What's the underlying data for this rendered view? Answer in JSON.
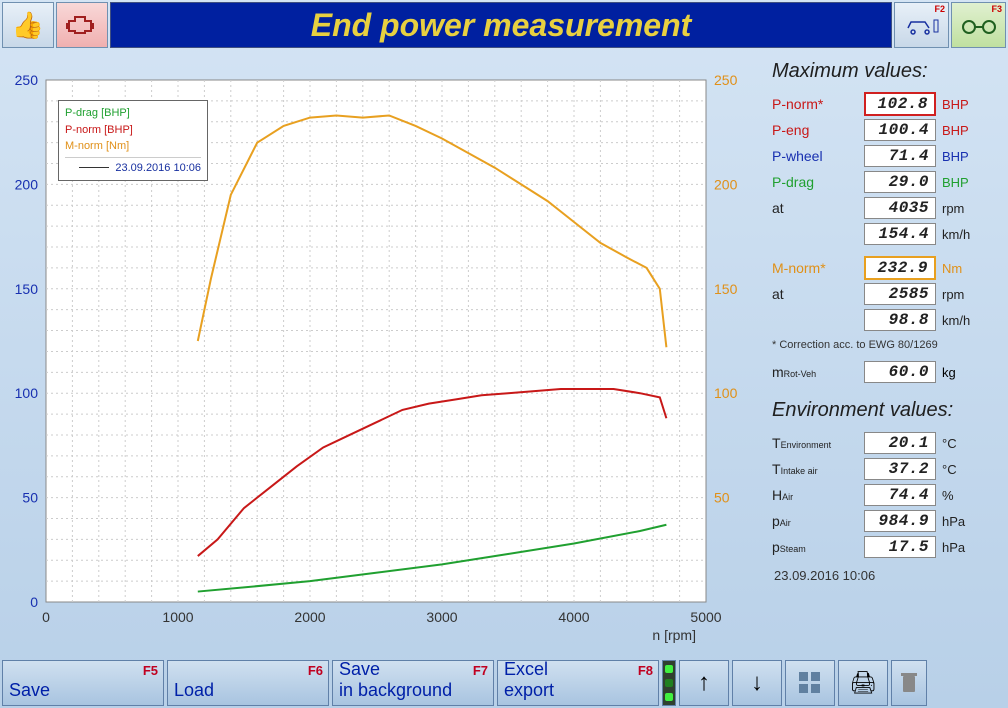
{
  "title": "End power measurement",
  "toolbar_top": {
    "f2": "F2",
    "f3": "F3"
  },
  "chart": {
    "type": "line",
    "xlabel": "n [rpm]",
    "x_ticks": [
      0,
      1000,
      2000,
      3000,
      4000,
      5000
    ],
    "xlim": [
      0,
      5000
    ],
    "left_axis": {
      "ticks": [
        0,
        50,
        100,
        150,
        200,
        250
      ],
      "lim": [
        0,
        250
      ],
      "color": "#1830b0"
    },
    "right_axis": {
      "ticks": [
        50,
        100,
        150,
        200,
        250
      ],
      "lim": [
        0,
        250
      ],
      "color": "#e09018"
    },
    "grid_color": "#cccccc",
    "background": "#ffffff",
    "line_width": 2,
    "legend": {
      "items": [
        {
          "label": "P-drag [BHP]",
          "color": "#20a030"
        },
        {
          "label": "P-norm [BHP]",
          "color": "#c81818"
        },
        {
          "label": "M-norm [Nm]",
          "color": "#e09018"
        }
      ],
      "timestamp": "23.09.2016 10:06"
    },
    "series": {
      "m_norm": {
        "color": "#e8a020",
        "points": [
          [
            1150,
            125
          ],
          [
            1250,
            155
          ],
          [
            1400,
            195
          ],
          [
            1600,
            220
          ],
          [
            1800,
            228
          ],
          [
            2000,
            232
          ],
          [
            2200,
            233
          ],
          [
            2400,
            232
          ],
          [
            2600,
            233
          ],
          [
            2800,
            228
          ],
          [
            3000,
            222
          ],
          [
            3200,
            215
          ],
          [
            3400,
            208
          ],
          [
            3600,
            200
          ],
          [
            3800,
            192
          ],
          [
            4000,
            182
          ],
          [
            4200,
            172
          ],
          [
            4400,
            165
          ],
          [
            4550,
            160
          ],
          [
            4650,
            150
          ],
          [
            4700,
            122
          ]
        ]
      },
      "p_norm": {
        "color": "#c81818",
        "points": [
          [
            1150,
            22
          ],
          [
            1300,
            30
          ],
          [
            1500,
            45
          ],
          [
            1700,
            55
          ],
          [
            1900,
            65
          ],
          [
            2100,
            74
          ],
          [
            2300,
            80
          ],
          [
            2500,
            86
          ],
          [
            2700,
            92
          ],
          [
            2900,
            95
          ],
          [
            3100,
            97
          ],
          [
            3300,
            99
          ],
          [
            3500,
            100
          ],
          [
            3700,
            101
          ],
          [
            3900,
            102
          ],
          [
            4100,
            102
          ],
          [
            4300,
            102
          ],
          [
            4500,
            100
          ],
          [
            4650,
            98
          ],
          [
            4700,
            88
          ]
        ]
      },
      "p_drag": {
        "color": "#20a030",
        "points": [
          [
            1150,
            5
          ],
          [
            1500,
            7
          ],
          [
            2000,
            10
          ],
          [
            2500,
            14
          ],
          [
            3000,
            18
          ],
          [
            3500,
            23
          ],
          [
            4000,
            28
          ],
          [
            4500,
            34
          ],
          [
            4700,
            37
          ]
        ]
      }
    }
  },
  "max_values": {
    "heading": "Maximum values:",
    "rows": [
      {
        "label": "P-norm*",
        "value": "102.8",
        "unit": "BHP",
        "color": "red",
        "box": "red"
      },
      {
        "label": "P-eng",
        "value": "100.4",
        "unit": "BHP",
        "color": "red"
      },
      {
        "label": "P-wheel",
        "value": "71.4",
        "unit": "BHP",
        "color": "blue"
      },
      {
        "label": "P-drag",
        "value": "29.0",
        "unit": "BHP",
        "color": "green"
      },
      {
        "label": "at",
        "value": "4035",
        "unit": "rpm",
        "color": "black"
      },
      {
        "label": "",
        "value": "154.4",
        "unit": "km/h",
        "color": "black"
      }
    ],
    "torque_rows": [
      {
        "label": "M-norm*",
        "value": "232.9",
        "unit": "Nm",
        "color": "orange",
        "box": "orange"
      },
      {
        "label": "at",
        "value": "2585",
        "unit": "rpm",
        "color": "black"
      },
      {
        "label": "",
        "value": "98.8",
        "unit": "km/h",
        "color": "black"
      }
    ],
    "footnote": "* Correction acc. to EWG 80/1269",
    "mass": {
      "label_main": "m",
      "label_sub": "Rot-Veh",
      "value": "60.0",
      "unit": "kg"
    }
  },
  "env_values": {
    "heading": "Environment values:",
    "rows": [
      {
        "label_main": "T",
        "label_sub": "Environment",
        "value": "20.1",
        "unit": "°C"
      },
      {
        "label_main": "T",
        "label_sub": "Intake air",
        "value": "37.2",
        "unit": "°C"
      },
      {
        "label_main": "H",
        "label_sub": "Air",
        "value": "74.4",
        "unit": "%"
      },
      {
        "label_main": "p",
        "label_sub": "Air",
        "value": "984.9",
        "unit": "hPa"
      },
      {
        "label_main": "p",
        "label_sub": "Steam",
        "value": "17.5",
        "unit": "hPa"
      }
    ]
  },
  "timestamp": "23.09.2016  10:06",
  "bottom": {
    "buttons": [
      {
        "label": "Save",
        "fkey": "F5"
      },
      {
        "label": "Load",
        "fkey": "F6"
      },
      {
        "label": "Save in background",
        "fkey": "F7"
      },
      {
        "label": "Excel export",
        "fkey": "F8"
      }
    ]
  }
}
